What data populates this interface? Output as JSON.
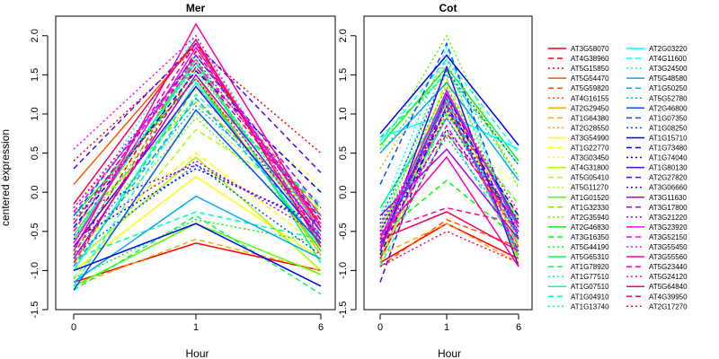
{
  "chart_data": {
    "type": "line",
    "ylabel": "centered expression",
    "xlabel": "Hour",
    "x_tick_labels": [
      "0",
      "1",
      "6"
    ],
    "ylim": [
      -1.5,
      2.25
    ],
    "y_ticks": [
      -1.5,
      -1.0,
      -0.5,
      0.0,
      0.5,
      1.0,
      1.5,
      2.0
    ],
    "y_tick_labels": [
      "-1.5",
      "-1.0",
      "-0.5",
      "0.0",
      "0.5",
      "1.0",
      "1.5",
      "2.0"
    ],
    "series": [
      {
        "name": "AT3G58070",
        "color": "#FF0000",
        "dash": "solid"
      },
      {
        "name": "AT4G38960",
        "color": "#FF0000",
        "dash": "dashed"
      },
      {
        "name": "AT5G15850",
        "color": "#FF0000",
        "dash": "dotted"
      },
      {
        "name": "AT5G54470",
        "color": "#FF5500",
        "dash": "solid"
      },
      {
        "name": "AT5G59820",
        "color": "#FF5500",
        "dash": "dashed"
      },
      {
        "name": "AT4G16155",
        "color": "#FF5500",
        "dash": "dotted"
      },
      {
        "name": "AT2G29450",
        "color": "#FFAA00",
        "dash": "solid"
      },
      {
        "name": "AT1G64380",
        "color": "#FFAA00",
        "dash": "dashed"
      },
      {
        "name": "AT2G28550",
        "color": "#FFAA00",
        "dash": "dotted"
      },
      {
        "name": "AT3G54990",
        "color": "#FFFF00",
        "dash": "solid"
      },
      {
        "name": "AT1G22770",
        "color": "#FFFF00",
        "dash": "dashed"
      },
      {
        "name": "AT3G03450",
        "color": "#FFFF00",
        "dash": "dotted"
      },
      {
        "name": "AT4G31800",
        "color": "#AAFF00",
        "dash": "solid"
      },
      {
        "name": "AT5G05410",
        "color": "#AAFF00",
        "dash": "dashed"
      },
      {
        "name": "AT5G11270",
        "color": "#AAFF00",
        "dash": "dotted"
      },
      {
        "name": "AT1G01520",
        "color": "#55FF00",
        "dash": "solid"
      },
      {
        "name": "AT1G32330",
        "color": "#55FF00",
        "dash": "dashed"
      },
      {
        "name": "AT2G35940",
        "color": "#55FF00",
        "dash": "dotted"
      },
      {
        "name": "AT2G46830",
        "color": "#00FF00",
        "dash": "solid"
      },
      {
        "name": "AT3G16350",
        "color": "#00FF00",
        "dash": "dashed"
      },
      {
        "name": "AT5G44190",
        "color": "#00FF00",
        "dash": "dotted"
      },
      {
        "name": "AT5G65310",
        "color": "#00FF55",
        "dash": "solid"
      },
      {
        "name": "AT1G78920",
        "color": "#00FF55",
        "dash": "dashed"
      },
      {
        "name": "AT1G77510",
        "color": "#00FF55",
        "dash": "dotted"
      },
      {
        "name": "AT1G07510",
        "color": "#00FFAA",
        "dash": "solid"
      },
      {
        "name": "AT1G04910",
        "color": "#00FFAA",
        "dash": "dashed"
      },
      {
        "name": "AT1G13740",
        "color": "#00FFAA",
        "dash": "dotted"
      },
      {
        "name": "AT2G03220",
        "color": "#00FFFF",
        "dash": "solid"
      },
      {
        "name": "AT4G11600",
        "color": "#00FFFF",
        "dash": "dashed"
      },
      {
        "name": "AT3G24500",
        "color": "#00FFFF",
        "dash": "dotted"
      },
      {
        "name": "AT5G48580",
        "color": "#00AAFF",
        "dash": "solid"
      },
      {
        "name": "AT1G50250",
        "color": "#00AAFF",
        "dash": "dashed"
      },
      {
        "name": "AT5G52780",
        "color": "#00AAFF",
        "dash": "dotted"
      },
      {
        "name": "AT2G46800",
        "color": "#0055FF",
        "dash": "solid"
      },
      {
        "name": "AT1G07350",
        "color": "#0055FF",
        "dash": "dashed"
      },
      {
        "name": "AT1G08250",
        "color": "#0055FF",
        "dash": "dotted"
      },
      {
        "name": "AT1G15710",
        "color": "#0000FF",
        "dash": "solid"
      },
      {
        "name": "AT1G73480",
        "color": "#0000FF",
        "dash": "dashed"
      },
      {
        "name": "AT1G74040",
        "color": "#0000FF",
        "dash": "dotted"
      },
      {
        "name": "AT1G80130",
        "color": "#5500FF",
        "dash": "solid"
      },
      {
        "name": "AT2G27820",
        "color": "#5500FF",
        "dash": "dashed"
      },
      {
        "name": "AT3G06660",
        "color": "#5500FF",
        "dash": "dotted"
      },
      {
        "name": "AT3G11630",
        "color": "#AA00FF",
        "dash": "solid"
      },
      {
        "name": "AT3G17800",
        "color": "#AA00FF",
        "dash": "dashed"
      },
      {
        "name": "AT3G21220",
        "color": "#AA00FF",
        "dash": "dotted"
      },
      {
        "name": "AT3G23920",
        "color": "#FF00FF",
        "dash": "solid"
      },
      {
        "name": "AT3G52150",
        "color": "#FF00FF",
        "dash": "dashed"
      },
      {
        "name": "AT3G55450",
        "color": "#FF00FF",
        "dash": "dotted"
      },
      {
        "name": "AT3G55560",
        "color": "#FF00AA",
        "dash": "solid"
      },
      {
        "name": "AT5G23440",
        "color": "#FF00AA",
        "dash": "dashed"
      },
      {
        "name": "AT5G24120",
        "color": "#FF00AA",
        "dash": "dotted"
      },
      {
        "name": "AT5G64840",
        "color": "#FF0055",
        "dash": "solid"
      },
      {
        "name": "AT4G39950",
        "color": "#FF0055",
        "dash": "dashed"
      },
      {
        "name": "AT2G17270",
        "color": "#FF0055",
        "dash": "dotted"
      }
    ],
    "panels": [
      {
        "title": "Mer",
        "values": [
          [
            -1.15,
            -0.65,
            -1.0
          ],
          [
            -0.8,
            1.8,
            -0.4
          ],
          [
            0.4,
            1.85,
            0.5
          ],
          [
            0.1,
            1.9,
            -0.5
          ],
          [
            -0.95,
            1.75,
            -0.3
          ],
          [
            -0.2,
            1.6,
            -0.6
          ],
          [
            -0.85,
            1.5,
            -0.8
          ],
          [
            -1.2,
            -0.6,
            -1.0
          ],
          [
            -0.5,
            1.2,
            -0.4
          ],
          [
            -1.0,
            0.2,
            -0.85
          ],
          [
            -0.7,
            0.5,
            -0.7
          ],
          [
            -0.4,
            1.3,
            0.1
          ],
          [
            -0.9,
            0.45,
            -1.0
          ],
          [
            -1.1,
            0.8,
            -0.2
          ],
          [
            -0.6,
            1.0,
            -0.3
          ],
          [
            -1.2,
            -0.4,
            -1.05
          ],
          [
            -0.45,
            1.15,
            -0.25
          ],
          [
            -0.8,
            0.95,
            -0.55
          ],
          [
            -0.3,
            1.45,
            -0.75
          ],
          [
            -1.0,
            1.35,
            -0.2
          ],
          [
            -1.1,
            -0.35,
            -0.65
          ],
          [
            -0.6,
            1.7,
            -0.9
          ],
          [
            -1.25,
            -0.3,
            -1.3
          ],
          [
            -0.7,
            1.55,
            -0.45
          ],
          [
            -0.55,
            1.65,
            -0.65
          ],
          [
            -0.85,
            -0.25,
            -0.6
          ],
          [
            -0.4,
            1.6,
            -0.5
          ],
          [
            -1.0,
            1.4,
            -0.7
          ],
          [
            -1.2,
            1.25,
            -0.15
          ],
          [
            -0.35,
            2.0,
            -0.55
          ],
          [
            -1.15,
            -0.05,
            -0.85
          ],
          [
            -0.95,
            1.2,
            -0.55
          ],
          [
            -0.75,
            1.1,
            -0.3
          ],
          [
            -1.25,
            1.05,
            -0.65
          ],
          [
            -0.3,
            1.75,
            -0.35
          ],
          [
            -0.8,
            0.35,
            -0.8
          ],
          [
            -1.0,
            -0.4,
            -1.2
          ],
          [
            -0.45,
            1.55,
            0.0
          ],
          [
            -0.6,
            0.3,
            -0.4
          ],
          [
            -0.7,
            1.35,
            -0.6
          ],
          [
            0.3,
            1.9,
            0.25
          ],
          [
            -0.25,
            0.35,
            -0.45
          ],
          [
            -0.85,
            1.5,
            -0.5
          ],
          [
            -0.4,
            1.75,
            -0.2
          ],
          [
            -0.55,
            0.4,
            -0.55
          ],
          [
            -0.65,
            1.85,
            -0.45
          ],
          [
            -0.25,
            1.65,
            -0.3
          ],
          [
            0.55,
            2.0,
            -0.65
          ],
          [
            -0.75,
            2.15,
            -0.45
          ],
          [
            -0.5,
            1.9,
            -0.6
          ],
          [
            -0.2,
            1.7,
            -0.4
          ],
          [
            -0.15,
            1.95,
            -0.7
          ],
          [
            -0.9,
            1.6,
            -0.35
          ],
          [
            -0.35,
            1.45,
            -0.55
          ]
        ]
      },
      {
        "title": "Cot",
        "values": [
          [
            -0.9,
            -0.4,
            -0.85
          ],
          [
            -0.7,
            1.2,
            -0.6
          ],
          [
            -0.5,
            0.95,
            -0.4
          ],
          [
            -0.75,
            1.3,
            -0.7
          ],
          [
            -0.95,
            -0.35,
            -0.7
          ],
          [
            -0.6,
            1.0,
            -0.3
          ],
          [
            -0.85,
            1.1,
            -0.75
          ],
          [
            -0.8,
            -0.4,
            -0.9
          ],
          [
            0.3,
            1.7,
            0.2
          ],
          [
            -0.65,
            1.05,
            -0.65
          ],
          [
            -0.7,
            1.4,
            -0.9
          ],
          [
            -0.4,
            0.75,
            0.1
          ],
          [
            -0.6,
            1.25,
            -0.35
          ],
          [
            -0.8,
            1.45,
            -0.65
          ],
          [
            -0.55,
            1.6,
            -0.45
          ],
          [
            -0.5,
            1.15,
            -0.85
          ],
          [
            -0.9,
            1.0,
            -0.15
          ],
          [
            0.55,
            2.0,
            0.05
          ],
          [
            0.6,
            1.6,
            0.4
          ],
          [
            -0.55,
            0.15,
            -0.6
          ],
          [
            -0.4,
            1.35,
            -0.4
          ],
          [
            -0.2,
            1.15,
            -0.8
          ],
          [
            0.7,
            1.5,
            0.35
          ],
          [
            0.5,
            1.55,
            0.2
          ],
          [
            -0.6,
            0.95,
            -0.45
          ],
          [
            -0.95,
            0.8,
            -0.75
          ],
          [
            -0.45,
            1.7,
            -0.7
          ],
          [
            0.7,
            1.0,
            0.55
          ],
          [
            0.65,
            1.7,
            0.5
          ],
          [
            -0.3,
            1.85,
            -0.65
          ],
          [
            0.5,
            1.4,
            0.15
          ],
          [
            -0.65,
            1.2,
            -0.8
          ],
          [
            -0.6,
            0.7,
            -0.55
          ],
          [
            -0.7,
            1.25,
            -0.4
          ],
          [
            0.1,
            1.9,
            -0.6
          ],
          [
            -0.35,
            1.55,
            0.35
          ],
          [
            0.75,
            1.75,
            0.6
          ],
          [
            -0.8,
            1.1,
            -0.3
          ],
          [
            -0.5,
            1.05,
            -0.5
          ],
          [
            -0.75,
            1.6,
            -0.95
          ],
          [
            -1.15,
            1.25,
            -0.55
          ],
          [
            -0.55,
            0.8,
            -0.35
          ],
          [
            -0.3,
            0.55,
            -0.6
          ],
          [
            -0.65,
            1.1,
            -0.75
          ],
          [
            -0.4,
            0.95,
            -0.5
          ],
          [
            -0.6,
            1.3,
            -0.45
          ],
          [
            -0.7,
            0.85,
            -0.55
          ],
          [
            -0.45,
            1.15,
            -0.8
          ],
          [
            -0.55,
            0.45,
            -0.95
          ],
          [
            -0.5,
            -0.2,
            -0.4
          ],
          [
            -0.75,
            1.2,
            -0.25
          ],
          [
            -0.6,
            -0.25,
            -0.75
          ],
          [
            -0.85,
            0.75,
            -0.4
          ],
          [
            -0.95,
            -0.5,
            -0.9
          ]
        ]
      }
    ]
  }
}
